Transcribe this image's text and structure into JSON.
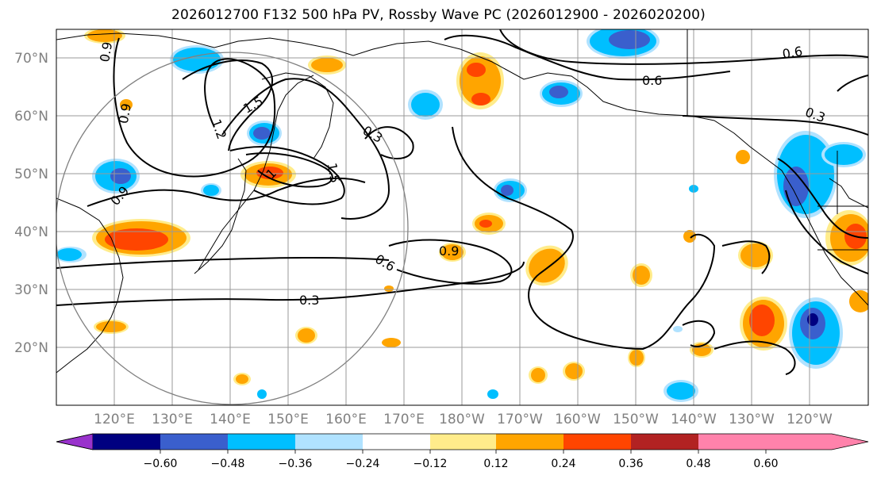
{
  "title": "2026012700 F132 500 hPa PV, Rossby Wave PC (2026012900 - 2026020200)",
  "lat_labels": [
    "70°N",
    "60°N",
    "50°N",
    "40°N",
    "30°N",
    "20°N"
  ],
  "lon_labels": [
    "120°E",
    "130°E",
    "140°E",
    "150°E",
    "160°E",
    "170°E",
    "180°W",
    "170°W",
    "160°W",
    "150°W",
    "140°W",
    "130°W",
    "120°W"
  ],
  "contour_labels": [
    "0.9",
    "0.6",
    "1.5",
    "1.2",
    "0.9",
    "0.3",
    "1",
    "1.5",
    "0.6",
    "0.9",
    "0.3",
    "0.9",
    "0.6",
    "0.3"
  ],
  "colorbar": {
    "ticks": [
      "−0.60",
      "−0.48",
      "−0.36",
      "−0.24",
      "−0.12",
      "0.12",
      "0.24",
      "0.36",
      "0.48",
      "0.60"
    ],
    "colors": [
      "#9932cc",
      "#000080",
      "#3a5fcd",
      "#00bfff",
      "#b0e2ff",
      "#ffffff",
      "#ffec8b",
      "#ffa500",
      "#ff4500",
      "#b22222",
      "#ff82ab"
    ]
  },
  "colors": {
    "pos_light": "#ffec8b",
    "pos_mid": "#ffa500",
    "pos_strong": "#ff4500",
    "neg_light": "#b0e2ff",
    "neg_mid": "#00bfff",
    "neg_strong": "#3a5fcd",
    "neg_max": "#000080"
  }
}
